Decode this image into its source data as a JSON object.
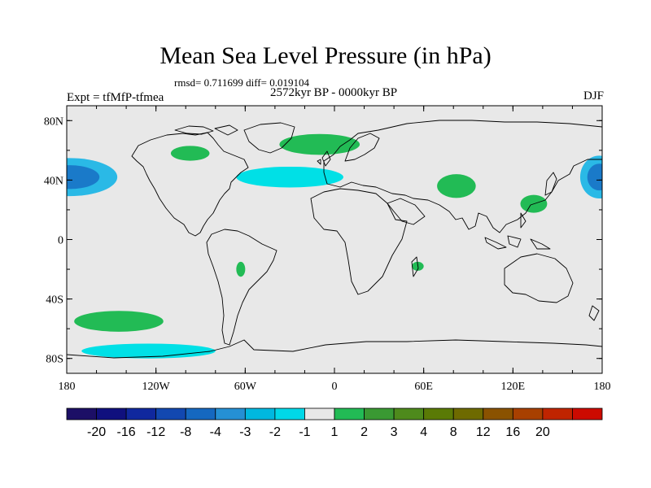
{
  "title": "Mean Sea Level Pressure (in hPa)",
  "stats": "rmsd= 0.711699 diff= 0.019104",
  "subtitle": "2572kyr BP - 0000kyr BP",
  "experiment": "Expt = tfMfP-tfmea",
  "season": "DJF",
  "map": {
    "lon_range": [
      -180,
      180
    ],
    "lat_range": [
      -90,
      90
    ],
    "background_color": "#e8e8e8",
    "lat_ticks": [
      {
        "lat": 80,
        "label": "80N"
      },
      {
        "lat": 40,
        "label": "40N"
      },
      {
        "lat": 0,
        "label": "0"
      },
      {
        "lat": -40,
        "label": "40S"
      },
      {
        "lat": -80,
        "label": "80S"
      }
    ],
    "lon_ticks": [
      {
        "lon": -180,
        "label": "180"
      },
      {
        "lon": -120,
        "label": "120W"
      },
      {
        "lon": -60,
        "label": "60W"
      },
      {
        "lon": 0,
        "label": "0"
      },
      {
        "lon": 60,
        "label": "60E"
      },
      {
        "lon": 120,
        "label": "120E"
      },
      {
        "lon": 180,
        "label": "180"
      }
    ]
  },
  "anomalies": [
    {
      "name": "north-pacific-low-west",
      "level": -4,
      "color": "#1a7ac9",
      "ring_color": "#2ab9e6",
      "lon": -178,
      "lat": 42,
      "rx": 20,
      "ry": 8
    },
    {
      "name": "north-pacific-low-east",
      "level": -4,
      "color": "#1a7ac9",
      "ring_color": "#2ab9e6",
      "lon": 178,
      "lat": 42,
      "rx": 8,
      "ry": 9
    },
    {
      "name": "north-atlantic-negative",
      "level": -1,
      "color": "#00e0e6",
      "lon": -30,
      "lat": 42,
      "rx": 36,
      "ry": 7
    },
    {
      "name": "southern-pacific-negative",
      "level": -1,
      "color": "#00e0e6",
      "lon": -125,
      "lat": -75,
      "rx": 45,
      "ry": 5
    },
    {
      "name": "canada-positive",
      "level": 1,
      "color": "#22bb55",
      "lon": -97,
      "lat": 58,
      "rx": 13,
      "ry": 5
    },
    {
      "name": "greenland-positive",
      "level": 1,
      "color": "#22bb55",
      "lon": -10,
      "lat": 64,
      "rx": 27,
      "ry": 7
    },
    {
      "name": "central-asia-positive",
      "level": 1,
      "color": "#22bb55",
      "lon": 82,
      "lat": 36,
      "rx": 13,
      "ry": 8
    },
    {
      "name": "east-china-positive",
      "level": 1,
      "color": "#22bb55",
      "lon": 134,
      "lat": 24,
      "rx": 9,
      "ry": 6
    },
    {
      "name": "south-america-positive",
      "level": 1,
      "color": "#22bb55",
      "lon": -63,
      "lat": -20,
      "rx": 3,
      "ry": 5
    },
    {
      "name": "madagascar-positive",
      "level": 1,
      "color": "#22bb55",
      "lon": 56,
      "lat": -18,
      "rx": 4,
      "ry": 3
    },
    {
      "name": "south-pacific-positive",
      "level": 1,
      "color": "#22bb55",
      "lon": -145,
      "lat": -55,
      "rx": 30,
      "ry": 7
    }
  ],
  "colorbar": {
    "colors": [
      "#1c0f66",
      "#10107e",
      "#10289e",
      "#1248b0",
      "#1568c0",
      "#2590d4",
      "#00b8e0",
      "#00d8e8",
      "#e8e8e8",
      "#22bb55",
      "#3a9933",
      "#4e8a1c",
      "#5a7a06",
      "#6e6a00",
      "#8a5200",
      "#a84000",
      "#c02400",
      "#cc0a00"
    ],
    "labels": [
      "-20",
      "-16",
      "-12",
      "-8",
      "-4",
      "-3",
      "-2",
      "-1",
      "1",
      "2",
      "3",
      "4",
      "8",
      "12",
      "16",
      "20"
    ]
  }
}
